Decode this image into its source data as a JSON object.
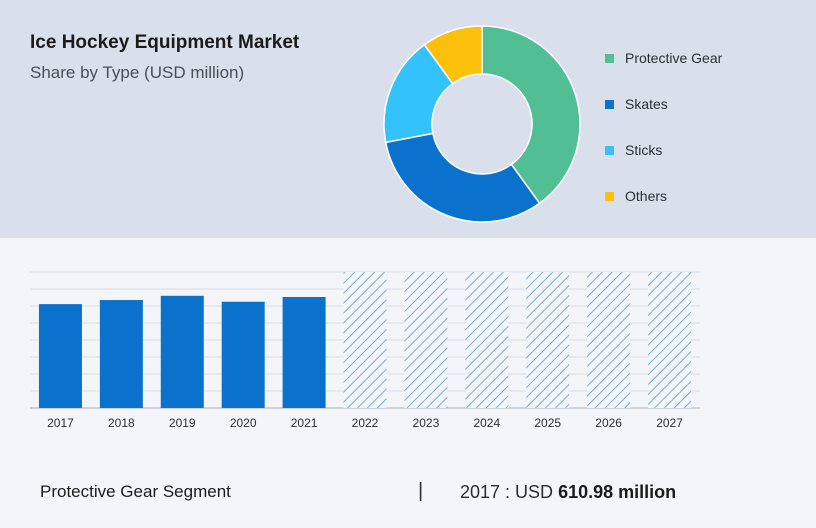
{
  "colors": {
    "protective_gear": "#52be94",
    "skates": "#0a72cc",
    "sticks": "#33c3fa",
    "others": "#fcbf0a",
    "bar": "#0a72cc",
    "forecast_hatch": "#5a9bd6"
  },
  "chart_data": [
    {
      "type": "donut",
      "title": "Ice Hockey Equipment Market",
      "subtitle": "Share by Type (USD million)",
      "legend_position": "right",
      "series": [
        {
          "name": "Protective Gear",
          "value": 40,
          "color": "#52be94"
        },
        {
          "name": "Skates",
          "value": 32,
          "color": "#0a72cc"
        },
        {
          "name": "Sticks",
          "value": 18,
          "color": "#33c3fa"
        },
        {
          "name": "Others",
          "value": 10,
          "color": "#fcbf0a"
        }
      ]
    },
    {
      "type": "bar",
      "categories": [
        "2017",
        "2018",
        "2019",
        "2020",
        "2021",
        "2022",
        "2023",
        "2024",
        "2025",
        "2026",
        "2027"
      ],
      "values": [
        610.98,
        635,
        660,
        625,
        653,
        null,
        null,
        null,
        null,
        null,
        null
      ],
      "forecast_categories": [
        "2022",
        "2023",
        "2024",
        "2025",
        "2026",
        "2027"
      ],
      "ylim": [
        0,
        800
      ],
      "grid": true
    }
  ],
  "footer": {
    "segment_label": "Protective Gear Segment",
    "divider": "|",
    "value_prefix": "2017 : USD ",
    "value_bold": "610.98 million"
  }
}
